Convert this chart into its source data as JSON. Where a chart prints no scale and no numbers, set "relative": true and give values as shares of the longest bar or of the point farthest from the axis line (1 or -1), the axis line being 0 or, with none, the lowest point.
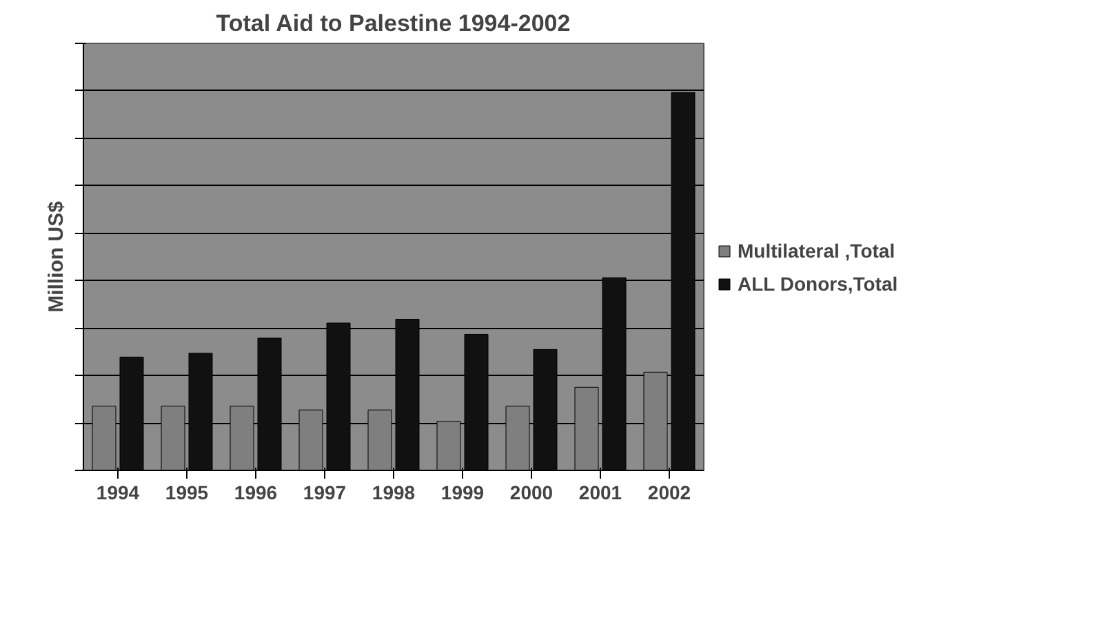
{
  "chart_data": {
    "type": "bar",
    "title": "Total Aid to Palestine 1994-2002",
    "ylabel": "Million US$",
    "relative": true,
    "grid": "y",
    "legend": "right",
    "categories": [
      "1994",
      "1995",
      "1996",
      "1997",
      "1998",
      "1999",
      "2000",
      "2001",
      "2002"
    ],
    "series": [
      {
        "name": "Multilateral ,Total",
        "color": "#7f7f7f",
        "values": [
          0.17,
          0.17,
          0.17,
          0.16,
          0.16,
          0.13,
          0.17,
          0.22,
          0.26
        ]
      },
      {
        "name": "ALL Donors,Total",
        "color": "#111111",
        "values": [
          0.3,
          0.31,
          0.35,
          0.39,
          0.4,
          0.36,
          0.32,
          0.51,
          1.0
        ]
      }
    ]
  }
}
